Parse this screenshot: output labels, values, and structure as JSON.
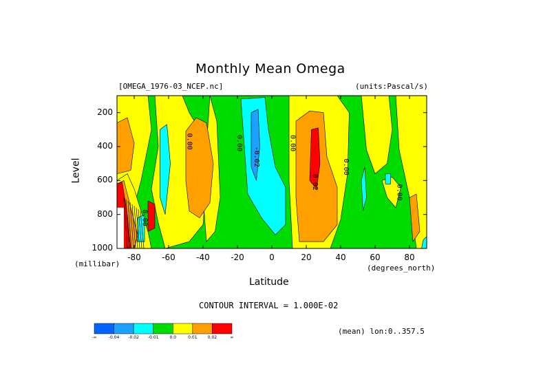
{
  "chart_data": {
    "type": "heatmap",
    "title": "Monthly Mean Omega",
    "dataset_label": "[OMEGA_1976-03_NCEP.nc]",
    "units_label": "(units:Pascal/s)",
    "xlabel": "Latitude",
    "xunit": "(degrees_north)",
    "ylabel": "Level",
    "yunit": "(millibar)",
    "x_ticks": [
      "-80",
      "-60",
      "-40",
      "-20",
      "0",
      "20",
      "40",
      "60",
      "80"
    ],
    "y_ticks": [
      "200",
      "400",
      "600",
      "800",
      "1000"
    ],
    "xlim": [
      -90,
      90
    ],
    "ylim": [
      1000,
      100
    ],
    "contour_interval_text": "CONTOUR INTERVAL = 1.000E-02",
    "footer_text": "(mean) lon:0..357.5",
    "contour_labels": [
      {
        "text": "0.00",
        "lat": -49,
        "level": 370
      },
      {
        "text": "0.00",
        "lat": -20,
        "level": 380
      },
      {
        "text": "-0.02",
        "lat": -10,
        "level": 460
      },
      {
        "text": "0.00",
        "lat": 11,
        "level": 380
      },
      {
        "text": "0.02",
        "lat": 24,
        "level": 610
      },
      {
        "text": "0.00",
        "lat": 42,
        "level": 520
      },
      {
        "text": "0.00",
        "lat": 73,
        "level": 670
      },
      {
        "text": "0.00",
        "lat": -75,
        "level": 820
      }
    ],
    "legend": {
      "colors": [
        "#0064ff",
        "#1ea0ff",
        "#00ffff",
        "#00dc00",
        "#ffff00",
        "#ffa000",
        "#ff0000"
      ],
      "labels": [
        "-∞",
        "-0.04",
        "-0.02",
        "-0.01",
        "0.0",
        "0.01",
        "0.02",
        "∞"
      ]
    }
  }
}
